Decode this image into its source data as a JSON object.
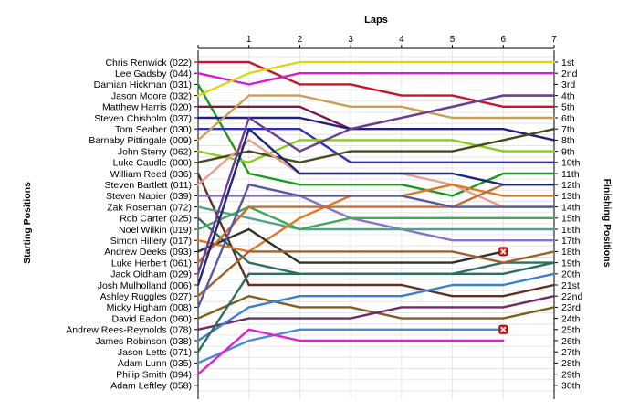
{
  "chart_data": {
    "type": "line",
    "title": "Laps",
    "ylabel_left": "Starting Positions",
    "ylabel_right": "Finishing Positions",
    "x": [
      0,
      1,
      2,
      3,
      4,
      5,
      6,
      7
    ],
    "x_tick_labels": [
      "",
      "1",
      "2",
      "3",
      "4",
      "5",
      "6",
      "7"
    ],
    "starting_labels": [
      "Chris Renwick (022)",
      "Lee Gadsby (044)",
      "Damian Hickman (031)",
      "Jason Moore (032)",
      "Matthew Harris (020)",
      "Steven Chisholm (037)",
      "Tom Seaber (030)",
      "Barnaby Pittingale (009)",
      "John Sterry (062)",
      "Luke Caudle (000)",
      "William Reed (036)",
      "Steven Bartlett (011)",
      "Steven Napier (039)",
      "Zak Roseman (072)",
      "Rob Carter (025)",
      "Noel Wilkin (019)",
      "Simon Hillery (017)",
      "Andrew Deeks (093)",
      "Luke Herbert (061)",
      "Jack Oldham (029)",
      "Josh Mulholland (006)",
      "Ashley Ruggles (027)",
      "Micky Higham (008)",
      "David Eadon (060)",
      "Andrew Rees-Reynolds (078)",
      "James Robinson (038)",
      "Jason Letts (071)",
      "Adam Lunn (035)",
      "Philip Smith (094)",
      "Adam Leftley (058)"
    ],
    "finishing_labels": [
      "1st",
      "2nd",
      "3rd",
      "4th",
      "5th",
      "6th",
      "7th",
      "8th",
      "9th",
      "10th",
      "11th",
      "12th",
      "13th",
      "14th",
      "15th",
      "16th",
      "17th",
      "18th",
      "19th",
      "20th",
      "21st",
      "22nd",
      "23rd",
      "24th",
      "25th",
      "26th",
      "27th",
      "28th",
      "29th",
      "30th"
    ],
    "series": [
      {
        "color": "#c8142c",
        "positions": [
          1,
          1,
          3,
          3,
          4,
          4,
          5,
          5
        ]
      },
      {
        "color": "#d020d0",
        "positions": [
          2,
          3,
          2,
          2,
          2,
          2,
          2,
          2
        ]
      },
      {
        "color": "#1a9a1a",
        "positions": [
          3,
          11,
          12,
          12,
          12,
          13,
          11,
          11
        ]
      },
      {
        "color": "#d8d818",
        "positions": [
          4,
          2,
          1,
          1,
          1,
          1,
          1,
          1
        ]
      },
      {
        "color": "#7a1850",
        "positions": [
          5,
          5,
          5,
          7,
          6,
          5,
          4,
          4
        ]
      },
      {
        "color": "#202080",
        "positions": [
          6,
          6,
          6,
          7,
          7,
          7,
          7,
          8
        ]
      },
      {
        "color": "#3030c0",
        "positions": [
          7,
          7,
          7,
          10,
          10,
          10,
          10,
          10
        ]
      },
      {
        "color": "#c8a050",
        "positions": [
          8,
          4,
          4,
          5,
          5,
          6,
          6,
          6
        ]
      },
      {
        "color": "#88cc22",
        "positions": [
          9,
          10,
          8,
          8,
          8,
          8,
          9,
          9
        ]
      },
      {
        "color": "#4a4a20",
        "positions": [
          10,
          9,
          10,
          9,
          9,
          9,
          8,
          7
        ]
      },
      {
        "color": "#603020",
        "positions": [
          11,
          21,
          21,
          21,
          21,
          22,
          22,
          21
        ]
      },
      {
        "color": "#e8a090",
        "positions": [
          12,
          8,
          11,
          11,
          11,
          12,
          14,
          14
        ]
      },
      {
        "color": "#8a70c8",
        "positions": [
          13,
          13,
          13,
          15,
          16,
          17,
          17,
          17
        ]
      },
      {
        "color": "#50a090",
        "positions": [
          14,
          15,
          16,
          16,
          16,
          16,
          16,
          16
        ]
      },
      {
        "color": "#2e6e60",
        "positions": [
          15,
          19,
          20,
          20,
          20,
          20,
          19,
          19
        ]
      },
      {
        "color": "#40a858",
        "positions": [
          16,
          14,
          16,
          15,
          15,
          15,
          15,
          15
        ]
      },
      {
        "color": "#e07820",
        "positions": [
          17,
          18,
          15,
          13,
          13,
          12,
          13,
          13
        ]
      },
      {
        "color": "#303030",
        "positions": [
          18,
          16,
          19,
          19,
          19,
          19,
          18
        ]
      },
      {
        "color": "#c07030",
        "positions": [
          19,
          14,
          14,
          14,
          14,
          14,
          12,
          12
        ]
      },
      {
        "color": "#6a4090",
        "positions": [
          20,
          6,
          9,
          7,
          6,
          5,
          4,
          4
        ]
      },
      {
        "color": "#202878",
        "positions": [
          21,
          7,
          11,
          11,
          11,
          11,
          12,
          12
        ]
      },
      {
        "color": "#a06030",
        "positions": [
          22,
          18,
          18,
          18,
          18,
          18,
          19,
          18
        ]
      },
      {
        "color": "#5858a0",
        "positions": [
          23,
          12,
          13,
          13,
          13,
          14,
          14,
          14
        ]
      },
      {
        "color": "#806020",
        "positions": [
          24,
          22,
          23,
          23,
          24,
          24,
          24,
          23
        ]
      },
      {
        "color": "#702a70",
        "positions": [
          25,
          24,
          24,
          24,
          23,
          23,
          23,
          22
        ]
      },
      {
        "color": "#3a80d0",
        "positions": [
          26,
          23,
          22,
          22,
          22,
          21,
          21,
          20
        ]
      },
      {
        "color": "#2e6e60",
        "positions": [
          27,
          20,
          20,
          20,
          20,
          20,
          20,
          19
        ]
      },
      {
        "color": "#4a8ad8",
        "positions": [
          28,
          26,
          25,
          25,
          25,
          25,
          25
        ]
      },
      {
        "color": "#e020d0",
        "positions": [
          29,
          25,
          26,
          26,
          26,
          26,
          26
        ]
      }
    ],
    "retired_markers": [
      {
        "x": 6,
        "position": 18
      },
      {
        "x": 6,
        "position": 25
      }
    ],
    "grid": true
  }
}
